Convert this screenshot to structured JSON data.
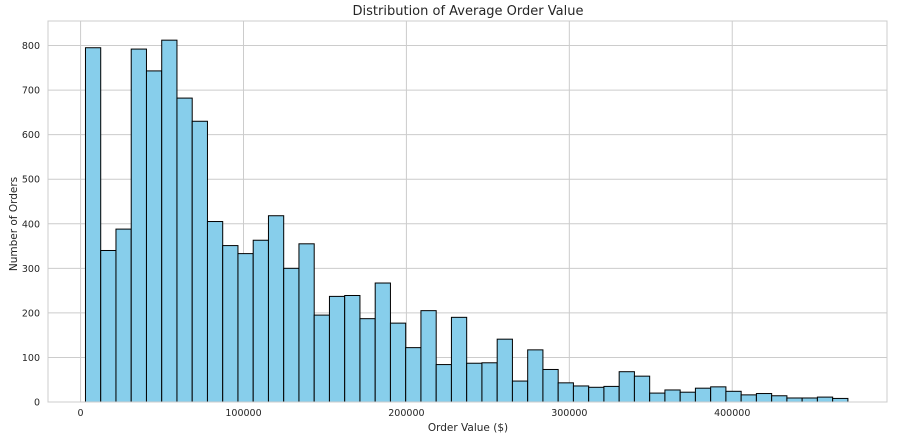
{
  "chart_data": {
    "type": "bar",
    "title": "Distribution of Average Order Value",
    "xlabel": "Order Value ($)",
    "ylabel": "Number of Orders",
    "xlim": [
      -20000,
      495000
    ],
    "ylim": [
      0,
      855
    ],
    "xticks": [
      0,
      100000,
      200000,
      300000,
      400000
    ],
    "yticks": [
      0,
      100,
      200,
      300,
      400,
      500,
      600,
      700,
      800
    ],
    "grid": true,
    "colors": {
      "bar_fill": "#87ceeb",
      "bar_edge": "#000000",
      "grid": "#cccccc"
    },
    "bins": {
      "start": 3000,
      "width": 9360,
      "counts": [
        795,
        340,
        388,
        792,
        743,
        812,
        682,
        630,
        405,
        351,
        333,
        363,
        418,
        300,
        355,
        195,
        237,
        239,
        187,
        267,
        177,
        122,
        205,
        84,
        190,
        87,
        88,
        141,
        47,
        117,
        73,
        43,
        36,
        33,
        35,
        68,
        58,
        20,
        27,
        22,
        31,
        34,
        24,
        16,
        19,
        14,
        9,
        9,
        11,
        8
      ]
    }
  }
}
